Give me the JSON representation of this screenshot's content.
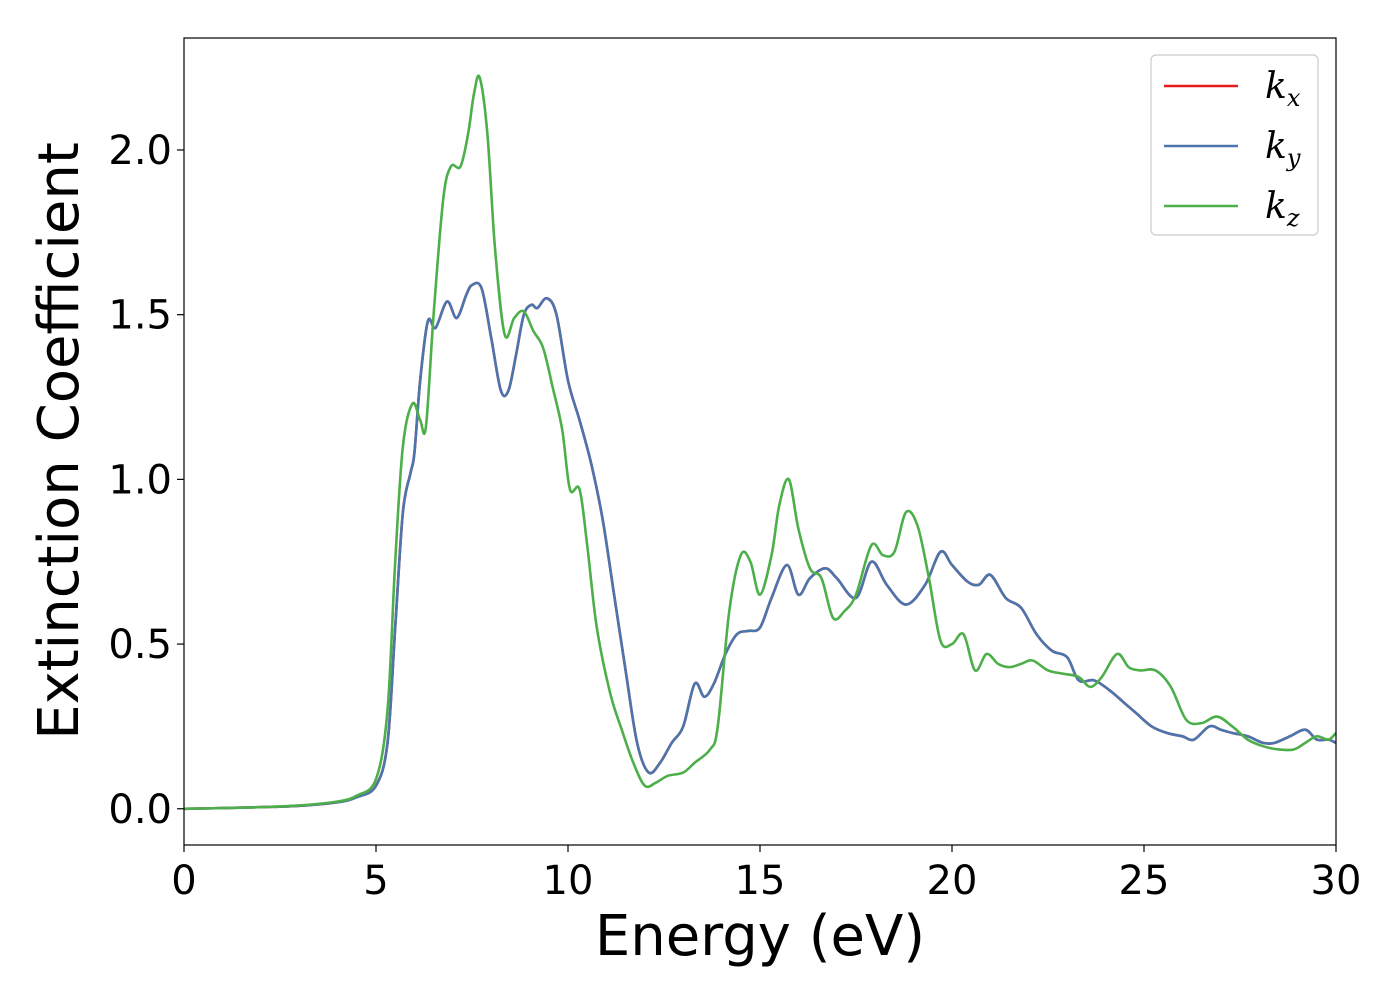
{
  "chart_data": {
    "type": "line",
    "xlabel": "Energy (eV)",
    "ylabel": "Extinction Coefficient",
    "xlim": [
      0,
      30
    ],
    "ylim": [
      -0.11,
      2.34
    ],
    "xticks": [
      0,
      5,
      10,
      15,
      20,
      25,
      30
    ],
    "yticks": [
      0.0,
      0.5,
      1.0,
      1.5,
      2.0
    ],
    "xtick_labels": [
      "0",
      "5",
      "10",
      "15",
      "20",
      "25",
      "30"
    ],
    "ytick_labels": [
      "0.0",
      "0.5",
      "1.0",
      "1.5",
      "2.0"
    ],
    "grid": false,
    "legend_position": "top-right",
    "series": [
      {
        "name": "k_x",
        "base": "k",
        "sub": "x",
        "color": "#e41a1c",
        "points": [
          [
            0,
            0.0
          ],
          [
            1,
            0.002
          ],
          [
            2,
            0.005
          ],
          [
            3,
            0.009
          ],
          [
            4,
            0.02
          ],
          [
            4.5,
            0.035
          ],
          [
            5,
            0.07
          ],
          [
            5.3,
            0.2
          ],
          [
            5.5,
            0.55
          ],
          [
            5.7,
            0.9
          ],
          [
            5.9,
            1.02
          ],
          [
            6.0,
            1.08
          ],
          [
            6.15,
            1.3
          ],
          [
            6.35,
            1.48
          ],
          [
            6.55,
            1.46
          ],
          [
            6.85,
            1.54
          ],
          [
            7.1,
            1.49
          ],
          [
            7.35,
            1.56
          ],
          [
            7.5,
            1.59
          ],
          [
            7.75,
            1.58
          ],
          [
            8.0,
            1.43
          ],
          [
            8.25,
            1.27
          ],
          [
            8.45,
            1.27
          ],
          [
            8.65,
            1.38
          ],
          [
            8.85,
            1.5
          ],
          [
            9.05,
            1.53
          ],
          [
            9.2,
            1.52
          ],
          [
            9.45,
            1.55
          ],
          [
            9.7,
            1.5
          ],
          [
            10.0,
            1.3
          ],
          [
            10.3,
            1.18
          ],
          [
            10.6,
            1.05
          ],
          [
            10.9,
            0.88
          ],
          [
            11.2,
            0.65
          ],
          [
            11.5,
            0.42
          ],
          [
            11.8,
            0.2
          ],
          [
            12.1,
            0.11
          ],
          [
            12.4,
            0.14
          ],
          [
            12.7,
            0.2
          ],
          [
            13.0,
            0.25
          ],
          [
            13.3,
            0.38
          ],
          [
            13.55,
            0.34
          ],
          [
            13.8,
            0.38
          ],
          [
            14.1,
            0.47
          ],
          [
            14.4,
            0.53
          ],
          [
            14.7,
            0.54
          ],
          [
            15.0,
            0.55
          ],
          [
            15.3,
            0.64
          ],
          [
            15.7,
            0.74
          ],
          [
            16.0,
            0.65
          ],
          [
            16.3,
            0.7
          ],
          [
            16.7,
            0.73
          ],
          [
            17.0,
            0.7
          ],
          [
            17.5,
            0.64
          ],
          [
            17.9,
            0.75
          ],
          [
            18.3,
            0.68
          ],
          [
            18.8,
            0.62
          ],
          [
            19.3,
            0.68
          ],
          [
            19.7,
            0.78
          ],
          [
            20.0,
            0.74
          ],
          [
            20.4,
            0.69
          ],
          [
            20.7,
            0.68
          ],
          [
            21.0,
            0.71
          ],
          [
            21.4,
            0.64
          ],
          [
            21.8,
            0.61
          ],
          [
            22.2,
            0.53
          ],
          [
            22.6,
            0.48
          ],
          [
            23.0,
            0.46
          ],
          [
            23.3,
            0.39
          ],
          [
            23.7,
            0.39
          ],
          [
            24.1,
            0.36
          ],
          [
            24.5,
            0.32
          ],
          [
            24.8,
            0.29
          ],
          [
            25.2,
            0.25
          ],
          [
            25.6,
            0.23
          ],
          [
            26.0,
            0.22
          ],
          [
            26.3,
            0.21
          ],
          [
            26.7,
            0.25
          ],
          [
            27.0,
            0.24
          ],
          [
            27.3,
            0.23
          ],
          [
            27.7,
            0.22
          ],
          [
            28.1,
            0.2
          ],
          [
            28.4,
            0.2
          ],
          [
            28.8,
            0.22
          ],
          [
            29.2,
            0.24
          ],
          [
            29.5,
            0.21
          ],
          [
            29.8,
            0.21
          ],
          [
            30.0,
            0.2
          ]
        ]
      },
      {
        "name": "k_y",
        "base": "k",
        "sub": "y",
        "color": "#4a76ad",
        "points": [
          [
            0,
            0.0
          ],
          [
            1,
            0.002
          ],
          [
            2,
            0.005
          ],
          [
            3,
            0.009
          ],
          [
            4,
            0.02
          ],
          [
            4.5,
            0.035
          ],
          [
            5,
            0.07
          ],
          [
            5.3,
            0.2
          ],
          [
            5.5,
            0.55
          ],
          [
            5.7,
            0.9
          ],
          [
            5.9,
            1.02
          ],
          [
            6.0,
            1.08
          ],
          [
            6.15,
            1.3
          ],
          [
            6.35,
            1.48
          ],
          [
            6.55,
            1.46
          ],
          [
            6.85,
            1.54
          ],
          [
            7.1,
            1.49
          ],
          [
            7.35,
            1.56
          ],
          [
            7.5,
            1.59
          ],
          [
            7.75,
            1.58
          ],
          [
            8.0,
            1.43
          ],
          [
            8.25,
            1.27
          ],
          [
            8.45,
            1.27
          ],
          [
            8.65,
            1.38
          ],
          [
            8.85,
            1.5
          ],
          [
            9.05,
            1.53
          ],
          [
            9.2,
            1.52
          ],
          [
            9.45,
            1.55
          ],
          [
            9.7,
            1.5
          ],
          [
            10.0,
            1.3
          ],
          [
            10.3,
            1.18
          ],
          [
            10.6,
            1.05
          ],
          [
            10.9,
            0.88
          ],
          [
            11.2,
            0.65
          ],
          [
            11.5,
            0.42
          ],
          [
            11.8,
            0.2
          ],
          [
            12.1,
            0.11
          ],
          [
            12.4,
            0.14
          ],
          [
            12.7,
            0.2
          ],
          [
            13.0,
            0.25
          ],
          [
            13.3,
            0.38
          ],
          [
            13.55,
            0.34
          ],
          [
            13.8,
            0.38
          ],
          [
            14.1,
            0.47
          ],
          [
            14.4,
            0.53
          ],
          [
            14.7,
            0.54
          ],
          [
            15.0,
            0.55
          ],
          [
            15.3,
            0.64
          ],
          [
            15.7,
            0.74
          ],
          [
            16.0,
            0.65
          ],
          [
            16.3,
            0.7
          ],
          [
            16.7,
            0.73
          ],
          [
            17.0,
            0.7
          ],
          [
            17.5,
            0.64
          ],
          [
            17.9,
            0.75
          ],
          [
            18.3,
            0.68
          ],
          [
            18.8,
            0.62
          ],
          [
            19.3,
            0.68
          ],
          [
            19.7,
            0.78
          ],
          [
            20.0,
            0.74
          ],
          [
            20.4,
            0.69
          ],
          [
            20.7,
            0.68
          ],
          [
            21.0,
            0.71
          ],
          [
            21.4,
            0.64
          ],
          [
            21.8,
            0.61
          ],
          [
            22.2,
            0.53
          ],
          [
            22.6,
            0.48
          ],
          [
            23.0,
            0.46
          ],
          [
            23.3,
            0.39
          ],
          [
            23.7,
            0.39
          ],
          [
            24.1,
            0.36
          ],
          [
            24.5,
            0.32
          ],
          [
            24.8,
            0.29
          ],
          [
            25.2,
            0.25
          ],
          [
            25.6,
            0.23
          ],
          [
            26.0,
            0.22
          ],
          [
            26.3,
            0.21
          ],
          [
            26.7,
            0.25
          ],
          [
            27.0,
            0.24
          ],
          [
            27.3,
            0.23
          ],
          [
            27.7,
            0.22
          ],
          [
            28.1,
            0.2
          ],
          [
            28.4,
            0.2
          ],
          [
            28.8,
            0.22
          ],
          [
            29.2,
            0.24
          ],
          [
            29.5,
            0.21
          ],
          [
            29.8,
            0.21
          ],
          [
            30.0,
            0.2
          ]
        ]
      },
      {
        "name": "k_z",
        "base": "k",
        "sub": "z",
        "color": "#4daf4a",
        "points": [
          [
            0,
            0.0
          ],
          [
            1,
            0.002
          ],
          [
            2,
            0.005
          ],
          [
            3,
            0.01
          ],
          [
            4,
            0.022
          ],
          [
            4.5,
            0.04
          ],
          [
            5,
            0.09
          ],
          [
            5.3,
            0.3
          ],
          [
            5.5,
            0.75
          ],
          [
            5.7,
            1.1
          ],
          [
            5.95,
            1.23
          ],
          [
            6.15,
            1.18
          ],
          [
            6.3,
            1.16
          ],
          [
            6.5,
            1.5
          ],
          [
            6.75,
            1.85
          ],
          [
            6.95,
            1.95
          ],
          [
            7.2,
            1.95
          ],
          [
            7.4,
            2.05
          ],
          [
            7.55,
            2.17
          ],
          [
            7.7,
            2.22
          ],
          [
            7.9,
            2.05
          ],
          [
            8.1,
            1.7
          ],
          [
            8.35,
            1.44
          ],
          [
            8.6,
            1.49
          ],
          [
            8.85,
            1.51
          ],
          [
            9.1,
            1.45
          ],
          [
            9.35,
            1.4
          ],
          [
            9.6,
            1.28
          ],
          [
            9.85,
            1.15
          ],
          [
            10.05,
            0.97
          ],
          [
            10.3,
            0.97
          ],
          [
            10.5,
            0.8
          ],
          [
            10.75,
            0.55
          ],
          [
            11.1,
            0.35
          ],
          [
            11.4,
            0.24
          ],
          [
            11.7,
            0.14
          ],
          [
            12.0,
            0.07
          ],
          [
            12.3,
            0.08
          ],
          [
            12.6,
            0.1
          ],
          [
            13.0,
            0.11
          ],
          [
            13.3,
            0.14
          ],
          [
            13.7,
            0.18
          ],
          [
            13.9,
            0.25
          ],
          [
            14.2,
            0.6
          ],
          [
            14.5,
            0.77
          ],
          [
            14.75,
            0.75
          ],
          [
            15.0,
            0.65
          ],
          [
            15.3,
            0.77
          ],
          [
            15.5,
            0.92
          ],
          [
            15.75,
            1.0
          ],
          [
            16.0,
            0.85
          ],
          [
            16.3,
            0.73
          ],
          [
            16.6,
            0.7
          ],
          [
            16.9,
            0.58
          ],
          [
            17.2,
            0.6
          ],
          [
            17.5,
            0.65
          ],
          [
            17.9,
            0.8
          ],
          [
            18.2,
            0.77
          ],
          [
            18.5,
            0.78
          ],
          [
            18.8,
            0.9
          ],
          [
            19.1,
            0.86
          ],
          [
            19.4,
            0.7
          ],
          [
            19.7,
            0.51
          ],
          [
            20.0,
            0.5
          ],
          [
            20.3,
            0.53
          ],
          [
            20.6,
            0.42
          ],
          [
            20.9,
            0.47
          ],
          [
            21.2,
            0.44
          ],
          [
            21.5,
            0.43
          ],
          [
            21.8,
            0.44
          ],
          [
            22.1,
            0.45
          ],
          [
            22.5,
            0.42
          ],
          [
            22.9,
            0.41
          ],
          [
            23.3,
            0.4
          ],
          [
            23.6,
            0.37
          ],
          [
            23.9,
            0.4
          ],
          [
            24.3,
            0.47
          ],
          [
            24.6,
            0.43
          ],
          [
            24.9,
            0.42
          ],
          [
            25.3,
            0.42
          ],
          [
            25.7,
            0.37
          ],
          [
            26.1,
            0.27
          ],
          [
            26.5,
            0.26
          ],
          [
            26.9,
            0.28
          ],
          [
            27.3,
            0.25
          ],
          [
            27.7,
            0.21
          ],
          [
            28.1,
            0.19
          ],
          [
            28.5,
            0.18
          ],
          [
            28.9,
            0.18
          ],
          [
            29.2,
            0.2
          ],
          [
            29.5,
            0.22
          ],
          [
            29.8,
            0.21
          ],
          [
            30.0,
            0.23
          ]
        ]
      }
    ]
  }
}
